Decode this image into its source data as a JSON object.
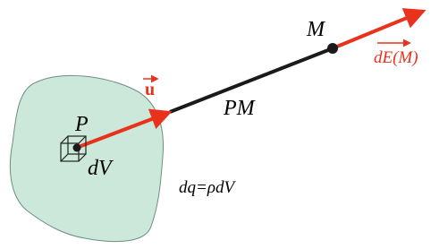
{
  "labels": {
    "point_p": "P",
    "point_m": "M",
    "distance": "PM",
    "unit_vector": "u",
    "field": "dE(M)",
    "volume": "dV",
    "charge": "dq=ρdV"
  }
}
